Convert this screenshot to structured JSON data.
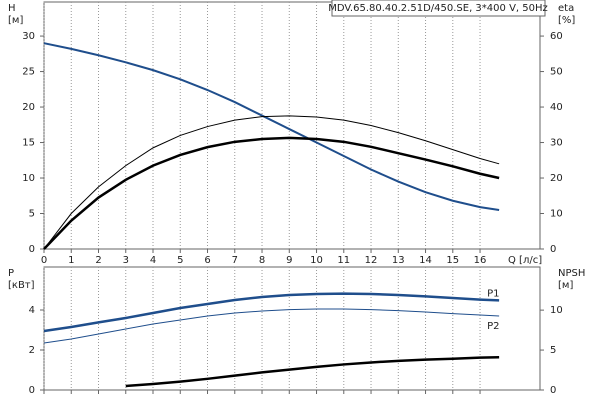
{
  "chart_data": [
    {
      "type": "line",
      "title": "MDV.65.80.40.2.51D/450.SE, 3*400 V, 50Hz",
      "xlabel": "Q [л/с]",
      "ylabel": "H",
      "yunit": "[м]",
      "y2label": "eta",
      "y2unit": "[%]",
      "x": [
        0,
        1,
        2,
        3,
        4,
        5,
        6,
        7,
        8,
        9,
        10,
        11,
        12,
        13,
        14,
        15,
        16,
        16.7
      ],
      "xlim": [
        0,
        18.2
      ],
      "xticks": [
        0,
        1,
        2,
        3,
        4,
        5,
        6,
        7,
        8,
        9,
        10,
        11,
        12,
        13,
        14,
        15,
        16
      ],
      "ylim": [
        0,
        34.8
      ],
      "yticks": [
        0,
        5,
        10,
        15,
        20,
        25,
        30
      ],
      "y2lim": [
        0,
        69.6
      ],
      "y2ticks": [
        0,
        10,
        20,
        30,
        40,
        50,
        60
      ],
      "grid": true,
      "series": [
        {
          "color": "#1f4e8c",
          "width": 2,
          "values": [
            29,
            28.2,
            27.3,
            26.3,
            25.2,
            23.9,
            22.4,
            20.7,
            18.8,
            16.9,
            15,
            13.1,
            11.2,
            9.5,
            8,
            6.8,
            5.9,
            5.5
          ]
        },
        {
          "color": "#000000",
          "width": 1,
          "axis": "y2",
          "values": [
            0,
            10,
            17.5,
            23.5,
            28.5,
            32,
            34.5,
            36.3,
            37.3,
            37.5,
            37.2,
            36.3,
            34.8,
            32.8,
            30.5,
            28,
            25.5,
            24
          ]
        },
        {
          "color": "#000000",
          "width": 2.5,
          "axis": "y2",
          "values": [
            0,
            8,
            14.5,
            19.5,
            23.5,
            26.5,
            28.7,
            30.2,
            31,
            31.3,
            31,
            30.2,
            28.8,
            27,
            25.2,
            23.3,
            21.2,
            20
          ]
        }
      ]
    },
    {
      "type": "line",
      "ylabel": "P",
      "yunit": "[кВт]",
      "y2label": "NPSH",
      "y2unit": "[м]",
      "x": [
        0,
        1,
        2,
        3,
        4,
        5,
        6,
        7,
        8,
        9,
        10,
        11,
        12,
        13,
        14,
        15,
        16,
        16.7
      ],
      "xlim": [
        0,
        18.2
      ],
      "xticks": [
        0,
        1,
        2,
        3,
        4,
        5,
        6,
        7,
        8,
        9,
        10,
        11,
        12,
        13,
        14,
        15,
        16
      ],
      "ylim": [
        0,
        6.15
      ],
      "yticks": [
        0,
        2,
        4
      ],
      "y2lim": [
        0,
        15.4
      ],
      "y2ticks": [
        0,
        5,
        10
      ],
      "grid": true,
      "series": [
        {
          "name": "P1",
          "color": "#1f4e8c",
          "width": 2.5,
          "values": [
            2.95,
            3.15,
            3.38,
            3.6,
            3.85,
            4.1,
            4.3,
            4.5,
            4.65,
            4.75,
            4.8,
            4.82,
            4.8,
            4.75,
            4.68,
            4.6,
            4.52,
            4.48
          ]
        },
        {
          "name": "P2",
          "color": "#1f4e8c",
          "width": 1,
          "values": [
            2.35,
            2.55,
            2.8,
            3.05,
            3.3,
            3.5,
            3.7,
            3.85,
            3.95,
            4.02,
            4.05,
            4.05,
            4.02,
            3.97,
            3.9,
            3.82,
            3.75,
            3.7
          ]
        },
        {
          "color": "#000000",
          "width": 2.5,
          "axis": "y2",
          "values": [
            null,
            null,
            null,
            0.5,
            0.75,
            1.05,
            1.4,
            1.8,
            2.2,
            2.55,
            2.9,
            3.2,
            3.45,
            3.65,
            3.8,
            3.92,
            4.05,
            4.1
          ]
        }
      ]
    }
  ]
}
